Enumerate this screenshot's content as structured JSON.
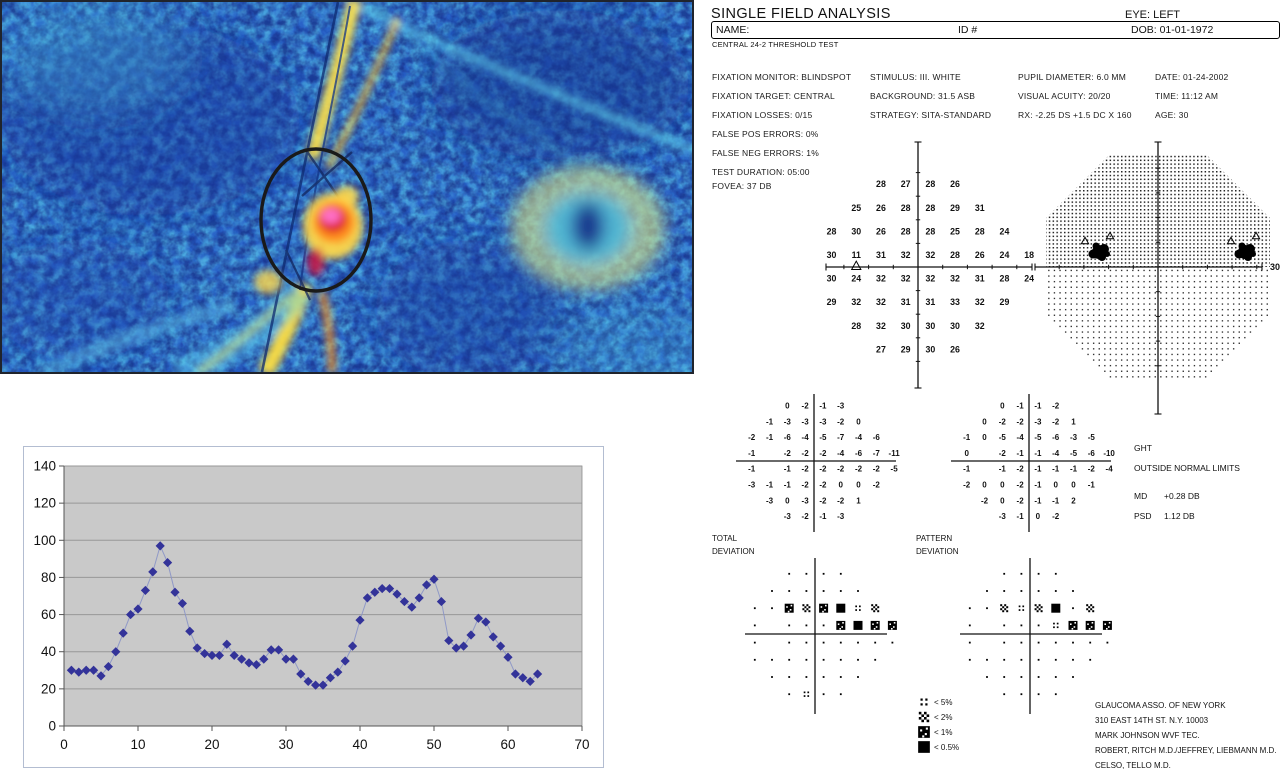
{
  "report": {
    "title": "SINGLE FIELD ANALYSIS",
    "eye": "EYE:  LEFT",
    "name_label": "NAME:",
    "id_label": "ID #",
    "dob_label": "DOB: 01-01-1972",
    "subtitle": "CENTRAL 24-2 THRESHOLD TEST",
    "fixation_lines": [
      "FIXATION MONITOR: BLINDSPOT",
      "FIXATION TARGET: CENTRAL",
      "FIXATION LOSSES: 0/15",
      "FALSE POS ERRORS: 0%",
      "FALSE NEG ERRORS: 1%",
      "TEST DURATION: 05:00"
    ],
    "fovea": "FOVEA: 37 DB",
    "stimulus_lines": [
      "STIMULUS: III. WHITE",
      "BACKGROUND: 31.5 ASB",
      "STRATEGY: SITA-STANDARD"
    ],
    "pupil_lines": [
      "PUPIL DIAMETER: 6.0 MM",
      "VISUAL ACUITY: 20/20",
      "RX: -2.25 DS  +1.5 DC X 160"
    ],
    "date_lines": [
      "DATE: 01-24-2002",
      "TIME: 11:12 AM",
      "AGE: 30"
    ],
    "threshold_grid": [
      [
        "28",
        "27",
        "28",
        "26"
      ],
      [
        "25",
        "26",
        "28",
        "28",
        "29",
        "31"
      ],
      [
        "28",
        "30",
        "26",
        "28",
        "28",
        "25",
        "28",
        "24"
      ],
      [
        "30",
        "11",
        "31",
        "32",
        "32",
        "28",
        "26",
        "24",
        "18"
      ],
      [
        "30",
        "24",
        "32",
        "32",
        "32",
        "32",
        "31",
        "28",
        "24"
      ],
      [
        "29",
        "32",
        "32",
        "31",
        "31",
        "33",
        "32",
        "29"
      ],
      [
        "28",
        "32",
        "30",
        "30",
        "30",
        "32"
      ],
      [
        "27",
        "29",
        "30",
        "26"
      ]
    ],
    "grayscale_axis_label": "30",
    "total_deviation_grid": [
      [
        "0",
        "-2",
        "-1",
        "-3"
      ],
      [
        "-1",
        "-3",
        "-3",
        "-3",
        "-2",
        "0"
      ],
      [
        "-2",
        "-1",
        "-6",
        "-4",
        "-5",
        "-7",
        "-4",
        "-6"
      ],
      [
        "-1",
        "",
        "-2",
        "-2",
        "-2",
        "-4",
        "-6",
        "-7",
        "-11"
      ],
      [
        "-1",
        "",
        "-1",
        "-2",
        "-2",
        "-2",
        "-2",
        "-2",
        "-5"
      ],
      [
        "-3",
        "-1",
        "-1",
        "-2",
        "-2",
        "0",
        "0",
        "-2"
      ],
      [
        "-3",
        "0",
        "-3",
        "-2",
        "-2",
        "1"
      ],
      [
        "-3",
        "-2",
        "-1",
        "-3"
      ]
    ],
    "pattern_deviation_grid": [
      [
        "0",
        "-1",
        "-1",
        "-2"
      ],
      [
        "0",
        "-2",
        "-2",
        "-3",
        "-2",
        "1"
      ],
      [
        "-1",
        "0",
        "-5",
        "-4",
        "-5",
        "-6",
        "-3",
        "-5"
      ],
      [
        "0",
        "",
        "-2",
        "-1",
        "-1",
        "-4",
        "-5",
        "-6",
        "-10"
      ],
      [
        "-1",
        "",
        "-1",
        "-2",
        "-1",
        "-1",
        "-1",
        "-2",
        "-4"
      ],
      [
        "-2",
        "0",
        "0",
        "-2",
        "-1",
        "0",
        "0",
        "-1"
      ],
      [
        "-2",
        "0",
        "-2",
        "-1",
        "-1",
        "2"
      ],
      [
        "-3",
        "-1",
        "0",
        "-2"
      ]
    ],
    "total_prob_map": [
      [
        ".",
        ".",
        ".",
        "."
      ],
      [
        ".",
        ".",
        ".",
        ".",
        ".",
        "."
      ],
      [
        ".",
        ".",
        "p1",
        "p2",
        "p1",
        "p05",
        "p5",
        "p2"
      ],
      [
        ".",
        "",
        ".",
        ".",
        ".",
        "p1",
        "p05",
        "p1",
        "p1"
      ],
      [
        ".",
        "",
        ".",
        ".",
        ".",
        ".",
        ".",
        ".",
        "."
      ],
      [
        ".",
        ".",
        ".",
        ".",
        ".",
        ".",
        ".",
        "."
      ],
      [
        ".",
        ".",
        ".",
        ".",
        ".",
        "."
      ],
      [
        ".",
        "p5",
        ".",
        "."
      ]
    ],
    "pattern_prob_map": [
      [
        ".",
        ".",
        ".",
        "."
      ],
      [
        ".",
        ".",
        ".",
        ".",
        ".",
        "."
      ],
      [
        ".",
        ".",
        "p2",
        "p5",
        "p2",
        "p05",
        ".",
        "p2"
      ],
      [
        ".",
        "",
        ".",
        ".",
        ".",
        "p5",
        "p1",
        "p1",
        "p1"
      ],
      [
        ".",
        "",
        ".",
        ".",
        ".",
        ".",
        ".",
        ".",
        "."
      ],
      [
        ".",
        ".",
        ".",
        ".",
        ".",
        ".",
        ".",
        "."
      ],
      [
        ".",
        ".",
        ".",
        ".",
        ".",
        "."
      ],
      [
        ".",
        ".",
        ".",
        "."
      ]
    ],
    "total_label_1": "TOTAL",
    "total_label_2": "DEVIATION",
    "pattern_label_1": "PATTERN",
    "pattern_label_2": "DEVIATION",
    "ght_label": "GHT",
    "ght_result": "OUTSIDE NORMAL LIMITS",
    "md_label": "MD",
    "md_value": "+0.28  DB",
    "psd_label": "PSD",
    "psd_value": "1.12  DB",
    "legend": [
      {
        "symbol": "p5",
        "label": "< 5%"
      },
      {
        "symbol": "p2",
        "label": "< 2%"
      },
      {
        "symbol": "p1",
        "label": "< 1%"
      },
      {
        "symbol": "p05",
        "label": "< 0.5%"
      }
    ],
    "clinic_lines": [
      "GLAUCOMA ASSO. OF NEW YORK",
      "310 EAST 14TH ST. N.Y. 10003",
      "MARK JOHNSON WVF TEC.",
      "ROBERT, RITCH M.D./JEFFREY, LIEBMANN M.D.",
      "CELSO, TELLO M.D."
    ]
  },
  "flow_image_palette": {
    "base_blue": "#2a63c8",
    "cyan": "#5ecbe8",
    "navy": "#16307e",
    "yellow": "#ffd935",
    "orange": "#ff8a1e",
    "red": "#e02828",
    "magenta": "#ff6fc8",
    "annotation_ring": "#1a1a1a",
    "donut_green": "#cfe08a"
  },
  "chart_data": {
    "type": "line",
    "title": "",
    "xlabel": "",
    "ylabel": "",
    "x_start": 1,
    "x": "1..64 (index series)",
    "values": [
      30,
      29,
      30,
      30,
      27,
      32,
      40,
      50,
      60,
      63,
      73,
      83,
      97,
      88,
      72,
      66,
      51,
      42,
      39,
      38,
      38,
      44,
      38,
      36,
      34,
      33,
      36,
      41,
      41,
      36,
      36,
      28,
      24,
      22,
      22,
      26,
      29,
      35,
      43,
      57,
      69,
      72,
      74,
      74,
      71,
      67,
      64,
      69,
      76,
      79,
      67,
      46,
      42,
      43,
      49,
      58,
      56,
      48,
      43,
      37,
      28,
      26,
      24,
      28
    ],
    "x_ticks": [
      0,
      10,
      20,
      30,
      40,
      50,
      60,
      70
    ],
    "y_ticks": [
      0,
      20,
      40,
      60,
      80,
      100,
      120,
      140
    ],
    "xlim": [
      0,
      70
    ],
    "ylim": [
      0,
      140
    ],
    "grid": true,
    "legend_position": "none",
    "marker": "diamond",
    "marker_color": "#333399",
    "line_color": "#8a93c6",
    "plot_bg": "#c9c9c9"
  }
}
